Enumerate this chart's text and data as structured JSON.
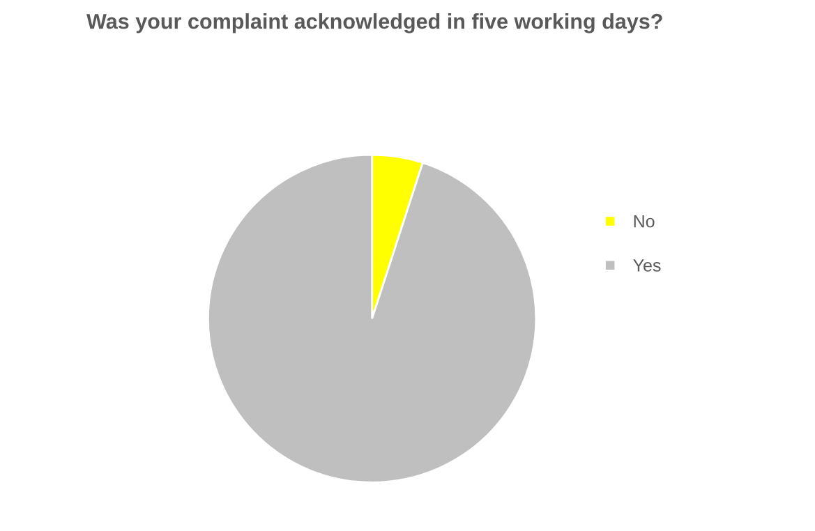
{
  "chart_data": {
    "type": "pie",
    "title": "Was your complaint acknowledged in five working days?",
    "categories": [
      "No",
      "Yes"
    ],
    "values": [
      5,
      95
    ],
    "colors": [
      "#ffff00",
      "#bfbfbf"
    ],
    "legend": "right"
  }
}
